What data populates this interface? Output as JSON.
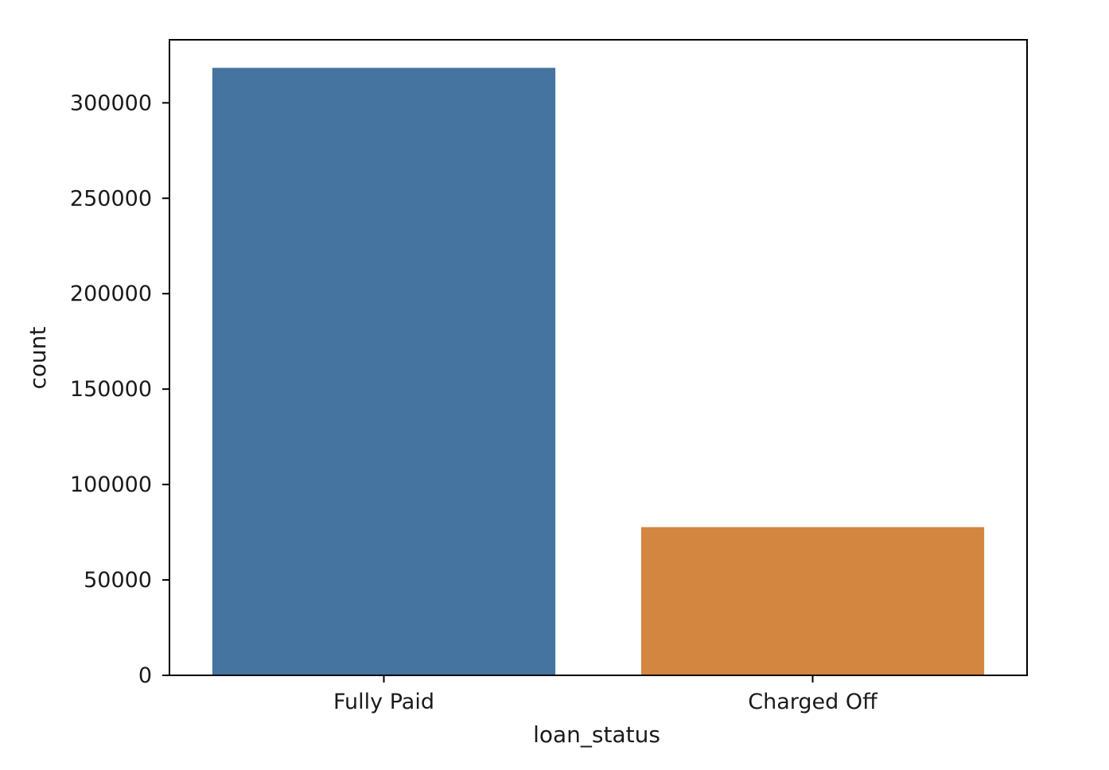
{
  "chart_data": {
    "type": "bar",
    "categories": [
      "Fully Paid",
      "Charged Off"
    ],
    "values": [
      318357,
      77673
    ],
    "colors": [
      "#4574a0",
      "#d38640"
    ],
    "xlabel": "loan_status",
    "ylabel": "count",
    "ylim": [
      0,
      333058
    ],
    "yticks": [
      0,
      50000,
      100000,
      150000,
      200000,
      250000,
      300000
    ],
    "ytick_labels": [
      "0",
      "50000",
      "100000",
      "150000",
      "200000",
      "250000",
      "300000"
    ],
    "grid": false
  }
}
